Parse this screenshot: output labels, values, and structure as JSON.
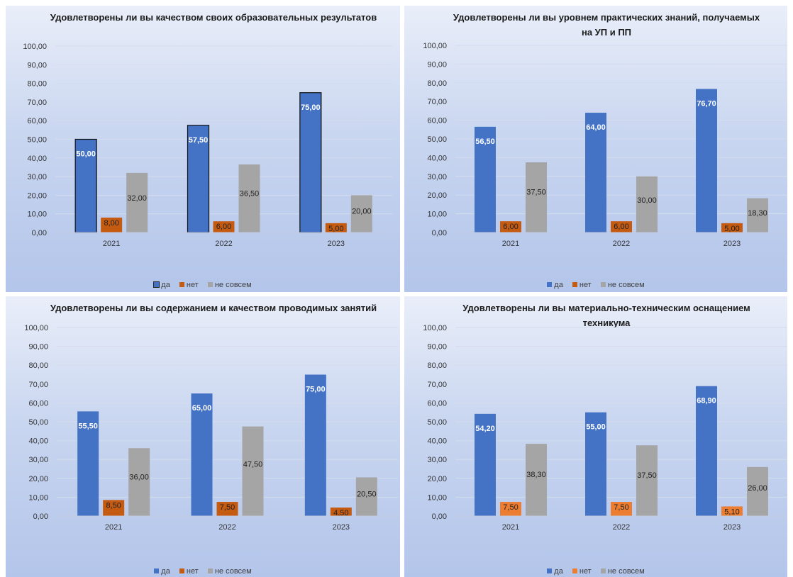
{
  "colors": {
    "da": "#4472c4",
    "net_dark": "#c55a11",
    "net_light": "#ed7d31",
    "ne_sovsem": "#a5a5a5"
  },
  "chart_data": [
    {
      "type": "bar",
      "title": "Удовлетворены ли вы качеством своих образовательных результатов",
      "categories": [
        "2021",
        "2022",
        "2023"
      ],
      "yticks": [
        "0,00",
        "10,00",
        "20,00",
        "30,00",
        "40,00",
        "50,00",
        "60,00",
        "70,00",
        "80,00",
        "90,00",
        "100,00"
      ],
      "ylim": [
        0,
        100
      ],
      "legend_position": "bottom",
      "series": [
        {
          "name": "да",
          "values": [
            50.0,
            57.5,
            75.0
          ],
          "labels": [
            "50,00",
            "57,50",
            "75,00"
          ],
          "color": "#4472c4"
        },
        {
          "name": "нет",
          "values": [
            8.0,
            6.0,
            5.0
          ],
          "labels": [
            "8,00",
            "6,00",
            "5,00"
          ],
          "color": "#c55a11"
        },
        {
          "name": "не совсем",
          "values": [
            32.0,
            36.5,
            20.0
          ],
          "labels": [
            "32,00",
            "36,50",
            "20,00"
          ],
          "color": "#a5a5a5"
        }
      ]
    },
    {
      "type": "bar",
      "title": "Удовлетворены ли вы уровнем практических знаний, получаемых на УП и ПП",
      "categories": [
        "2021",
        "2022",
        "2023"
      ],
      "yticks": [
        "0,00",
        "10,00",
        "20,00",
        "30,00",
        "40,00",
        "50,00",
        "60,00",
        "70,00",
        "80,00",
        "90,00",
        "100,00"
      ],
      "ylim": [
        0,
        100
      ],
      "legend_position": "bottom",
      "series": [
        {
          "name": "да",
          "values": [
            56.5,
            64.0,
            76.7
          ],
          "labels": [
            "56,50",
            "64,00",
            "76,70"
          ],
          "color": "#4472c4"
        },
        {
          "name": "нет",
          "values": [
            6.0,
            6.0,
            5.0
          ],
          "labels": [
            "6,00",
            "6,00",
            "5,00"
          ],
          "color": "#c55a11"
        },
        {
          "name": "не совсем",
          "values": [
            37.5,
            30.0,
            18.3
          ],
          "labels": [
            "37,50",
            "30,00",
            "18,30"
          ],
          "color": "#a5a5a5"
        }
      ]
    },
    {
      "type": "bar",
      "title": "Удовлетворены ли вы содержанием и качеством проводимых занятий",
      "categories": [
        "2021",
        "2022",
        "2023"
      ],
      "yticks": [
        "0,00",
        "10,00",
        "20,00",
        "30,00",
        "40,00",
        "50,00",
        "60,00",
        "70,00",
        "80,00",
        "90,00",
        "100,00"
      ],
      "ylim": [
        0,
        100
      ],
      "legend_position": "bottom",
      "series": [
        {
          "name": "да",
          "values": [
            55.5,
            65.0,
            75.0
          ],
          "labels": [
            "55,50",
            "65,00",
            "75,00"
          ],
          "color": "#4472c4"
        },
        {
          "name": "нет",
          "values": [
            8.5,
            7.5,
            4.5
          ],
          "labels": [
            "8,50",
            "7,50",
            "4,50"
          ],
          "color": "#c55a11"
        },
        {
          "name": "не совсем",
          "values": [
            36.0,
            47.5,
            20.5
          ],
          "labels": [
            "36,00",
            "47,50",
            "20,50"
          ],
          "color": "#a5a5a5"
        }
      ]
    },
    {
      "type": "bar",
      "title": "Удовлетворены ли вы материально-техническим оснащением техникума",
      "categories": [
        "2021",
        "2022",
        "2023"
      ],
      "yticks": [
        "0,00",
        "10,00",
        "20,00",
        "30,00",
        "40,00",
        "50,00",
        "60,00",
        "70,00",
        "80,00",
        "90,00",
        "100,00"
      ],
      "ylim": [
        0,
        100
      ],
      "legend_position": "bottom",
      "series": [
        {
          "name": "да",
          "values": [
            54.2,
            55.0,
            68.9
          ],
          "labels": [
            "54,20",
            "55,00",
            "68,90"
          ],
          "color": "#4472c4"
        },
        {
          "name": "нет",
          "values": [
            7.5,
            7.5,
            5.1
          ],
          "labels": [
            "7,50",
            "7,50",
            "5,10"
          ],
          "color": "#ed7d31"
        },
        {
          "name": "не совсем",
          "values": [
            38.3,
            37.5,
            26.0
          ],
          "labels": [
            "38,30",
            "37,50",
            "26,00"
          ],
          "color": "#a5a5a5"
        }
      ]
    }
  ]
}
